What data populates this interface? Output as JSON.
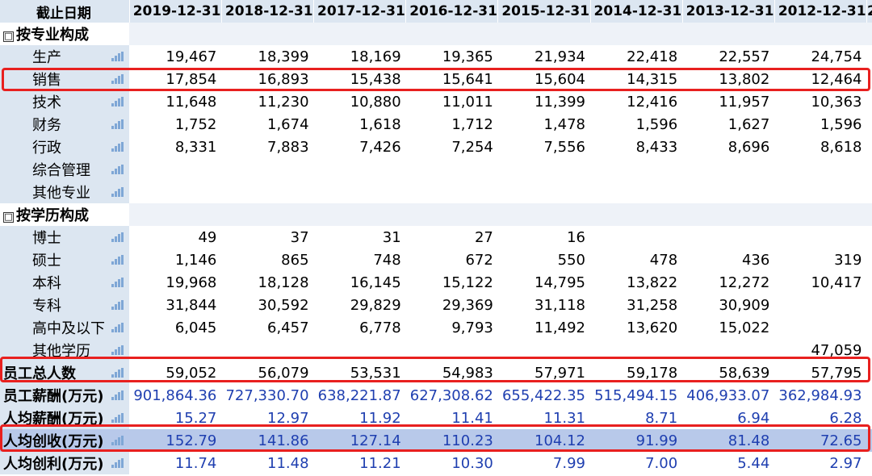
{
  "header": {
    "label": "截止日期",
    "dates": [
      "2019-12-31",
      "2018-12-31",
      "2017-12-31",
      "2016-12-31",
      "2015-12-31",
      "2014-12-31",
      "2013-12-31",
      "2012-12-31",
      "2"
    ]
  },
  "groups": {
    "by_profession": {
      "label": "按专业构成",
      "toggle": "□"
    },
    "by_education": {
      "label": "按学历构成",
      "toggle": "□"
    }
  },
  "rows": {
    "shengchan": {
      "label": "生产",
      "v": [
        "19,467",
        "18,399",
        "18,169",
        "19,365",
        "21,934",
        "22,418",
        "22,557",
        "24,754"
      ]
    },
    "xiaoshou": {
      "label": "销售",
      "v": [
        "17,854",
        "16,893",
        "15,438",
        "15,641",
        "15,604",
        "14,315",
        "13,802",
        "12,464"
      ]
    },
    "jishu": {
      "label": "技术",
      "v": [
        "11,648",
        "11,230",
        "10,880",
        "11,011",
        "11,399",
        "12,416",
        "11,957",
        "10,363"
      ]
    },
    "caiwu": {
      "label": "财务",
      "v": [
        "1,752",
        "1,674",
        "1,618",
        "1,712",
        "1,478",
        "1,596",
        "1,627",
        "1,596"
      ]
    },
    "xingzheng": {
      "label": "行政",
      "v": [
        "8,331",
        "7,883",
        "7,426",
        "7,254",
        "7,556",
        "8,433",
        "8,696",
        "8,618"
      ]
    },
    "zonghe": {
      "label": "综合管理",
      "v": [
        "",
        "",
        "",
        "",
        "",
        "",
        "",
        ""
      ]
    },
    "qitazhuanye": {
      "label": "其他专业",
      "v": [
        "",
        "",
        "",
        "",
        "",
        "",
        "",
        ""
      ]
    },
    "boshi": {
      "label": "博士",
      "v": [
        "49",
        "37",
        "31",
        "27",
        "16",
        "",
        "",
        ""
      ]
    },
    "shuoshi": {
      "label": "硕士",
      "v": [
        "1,146",
        "865",
        "748",
        "672",
        "550",
        "478",
        "436",
        "319"
      ]
    },
    "benke": {
      "label": "本科",
      "v": [
        "19,968",
        "18,128",
        "16,145",
        "15,122",
        "14,795",
        "13,822",
        "12,272",
        "10,417"
      ]
    },
    "zhuanke": {
      "label": "专科",
      "v": [
        "31,844",
        "30,592",
        "29,829",
        "29,369",
        "31,118",
        "31,258",
        "30,909",
        ""
      ]
    },
    "gaozhong": {
      "label": "高中及以下",
      "v": [
        "6,045",
        "6,457",
        "6,778",
        "9,793",
        "11,492",
        "13,620",
        "15,022",
        ""
      ]
    },
    "qitaxueli": {
      "label": "其他学历",
      "v": [
        "",
        "",
        "",
        "",
        "",
        "",
        "",
        "47,059"
      ]
    },
    "zongrenshu": {
      "label": "员工总人数",
      "v": [
        "59,052",
        "56,079",
        "53,531",
        "54,983",
        "57,971",
        "59,178",
        "58,639",
        "57,795"
      ]
    },
    "xinchou": {
      "label": "员工薪酬(万元)",
      "v": [
        "901,864.36",
        "727,330.70",
        "638,221.87",
        "627,308.62",
        "655,422.35",
        "515,494.15",
        "406,933.07",
        "362,984.93"
      ]
    },
    "renjunxinchou": {
      "label": "人均薪酬(万元)",
      "v": [
        "15.27",
        "12.97",
        "11.92",
        "11.41",
        "11.31",
        "8.71",
        "6.94",
        "6.28"
      ]
    },
    "renjunchuangshou": {
      "label": "人均创收(万元)",
      "v": [
        "152.79",
        "141.86",
        "127.14",
        "110.23",
        "104.12",
        "91.99",
        "81.48",
        "72.65"
      ]
    },
    "renjunchuangli": {
      "label": "人均创利(万元)",
      "v": [
        "11.74",
        "11.48",
        "11.21",
        "10.30",
        "7.99",
        "7.00",
        "5.44",
        "2.97"
      ]
    }
  },
  "icon": "bar-chart-icon",
  "colors": {
    "header_bg": "#dce6f1",
    "highlight_row": "#b8c9ea",
    "blue_text": "#1f3fb0",
    "annotation_red": "#e8201f"
  }
}
